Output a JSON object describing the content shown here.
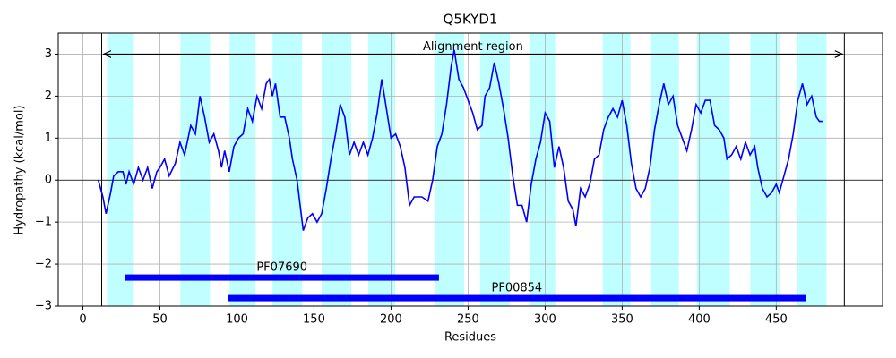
{
  "chart_data": {
    "type": "line",
    "title": "Q5KYD1",
    "x_label": "Residues",
    "y_label": "Hydropathy (kcal/mol)",
    "color": "#0000ff",
    "grid": true,
    "xlim": [
      -16,
      519
    ],
    "ylim": [
      -3,
      3.5
    ],
    "xticks": [
      0,
      50,
      100,
      150,
      200,
      250,
      300,
      350,
      400,
      450
    ],
    "yticks": [
      {
        "value": -3,
        "label": "−3"
      },
      {
        "value": -2,
        "label": "−2"
      },
      {
        "value": -1,
        "label": "−1"
      },
      0,
      1,
      2,
      3
    ],
    "x": [
      10,
      13,
      15,
      18,
      20,
      23,
      26,
      28,
      30,
      33,
      36,
      39,
      42,
      45,
      48,
      50,
      53,
      56,
      60,
      63,
      66,
      70,
      73,
      76,
      79,
      82,
      85,
      88,
      90,
      92,
      95,
      98,
      101,
      104,
      107,
      110,
      113,
      116,
      119,
      121,
      123,
      125,
      128,
      131,
      134,
      136,
      139,
      141,
      143,
      146,
      149,
      152,
      155,
      158,
      161,
      164,
      167,
      170,
      173,
      176,
      179,
      182,
      185,
      188,
      191,
      194,
      197,
      200,
      203,
      206,
      209,
      212,
      215,
      220,
      224,
      227,
      230,
      233,
      236,
      239,
      241,
      244,
      247,
      250,
      253,
      256,
      259,
      261,
      264,
      267,
      270,
      273,
      276,
      279,
      282,
      285,
      288,
      291,
      294,
      297,
      300,
      303,
      306,
      309,
      312,
      315,
      318,
      320,
      323,
      326,
      329,
      332,
      335,
      338,
      341,
      344,
      347,
      350,
      353,
      356,
      359,
      362,
      365,
      368,
      371,
      374,
      377,
      380,
      383,
      386,
      389,
      392,
      395,
      398,
      401,
      404,
      407,
      410,
      413,
      416,
      418,
      421,
      424,
      427,
      430,
      433,
      436,
      438,
      441,
      444,
      447,
      450,
      452,
      455,
      458,
      461,
      464,
      467,
      470,
      473,
      476,
      478,
      480
    ],
    "values": [
      0.0,
      -0.4,
      -0.8,
      -0.3,
      0.1,
      0.2,
      0.2,
      -0.1,
      0.2,
      -0.1,
      0.3,
      0.0,
      0.3,
      -0.2,
      0.2,
      0.3,
      0.5,
      0.1,
      0.4,
      0.9,
      0.6,
      1.3,
      1.1,
      2.0,
      1.5,
      0.9,
      1.1,
      0.7,
      0.3,
      0.7,
      0.2,
      0.8,
      1.0,
      1.1,
      1.7,
      1.4,
      2.0,
      1.7,
      2.3,
      2.4,
      2.0,
      2.3,
      1.5,
      1.5,
      1.0,
      0.5,
      0.0,
      -0.6,
      -1.2,
      -0.9,
      -0.8,
      -1.0,
      -0.8,
      -0.2,
      0.5,
      1.1,
      1.8,
      1.5,
      0.6,
      0.9,
      0.6,
      0.9,
      0.6,
      1.0,
      1.6,
      2.4,
      1.7,
      1.0,
      1.1,
      0.8,
      0.3,
      -0.6,
      -0.4,
      -0.4,
      -0.5,
      0.0,
      0.8,
      1.1,
      1.8,
      2.7,
      3.1,
      2.4,
      2.2,
      1.9,
      1.6,
      1.2,
      1.3,
      2.0,
      2.2,
      2.8,
      2.3,
      1.7,
      1.0,
      0.1,
      -0.6,
      -0.6,
      -1.0,
      -0.1,
      0.5,
      0.9,
      1.6,
      1.4,
      0.3,
      0.8,
      0.3,
      -0.5,
      -0.7,
      -1.1,
      -0.2,
      -0.4,
      -0.1,
      0.5,
      0.6,
      1.2,
      1.5,
      1.7,
      1.5,
      1.9,
      1.3,
      0.4,
      -0.2,
      -0.4,
      -0.2,
      0.3,
      1.2,
      1.8,
      2.3,
      1.8,
      2.0,
      1.3,
      1.0,
      0.7,
      1.2,
      1.8,
      1.6,
      1.9,
      1.9,
      1.3,
      1.2,
      1.0,
      0.5,
      0.6,
      0.8,
      0.5,
      0.9,
      0.6,
      0.8,
      0.3,
      -0.2,
      -0.4,
      -0.3,
      -0.1,
      -0.3,
      0.1,
      0.5,
      1.1,
      1.9,
      2.3,
      1.8,
      2.0,
      1.5,
      1.4,
      1.4
    ],
    "regions_color": "#c0ffff",
    "regions": [
      [
        15.7,
        32.5
      ],
      [
        63.3,
        82.5
      ],
      [
        95.2,
        112.1
      ],
      [
        123.1,
        142.3
      ],
      [
        155,
        174.2
      ],
      [
        185.2,
        202.7
      ],
      [
        228.2,
        247.4
      ],
      [
        257.8,
        277
      ],
      [
        289.8,
        306.6
      ],
      [
        337.4,
        355.4
      ],
      [
        368.8,
        386.8
      ],
      [
        398.4,
        419.9
      ],
      [
        433.2,
        452.4
      ],
      [
        463.4,
        482.6
      ]
    ],
    "alignment": {
      "label": "Alignment region",
      "start": 12.2,
      "end": 494.2,
      "y": 3
    },
    "domains_color": "#0000ff",
    "domains": [
      {
        "label": "PF07690",
        "start": 27.3,
        "end": 231.1,
        "y": -2.32
      },
      {
        "label": "PF00854",
        "start": 94.1,
        "end": 469.2,
        "y": -2.81
      }
    ]
  }
}
